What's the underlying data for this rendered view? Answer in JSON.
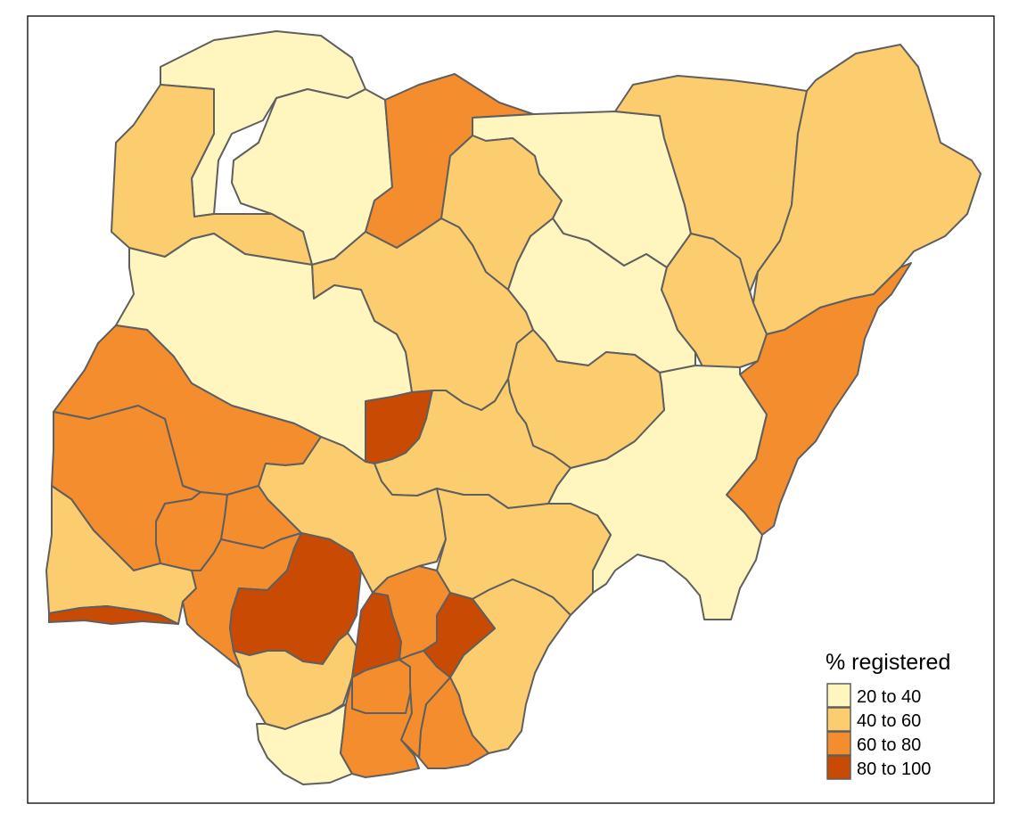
{
  "legend": {
    "title": "% registered",
    "classes": [
      {
        "label": "20 to 40",
        "color": "#FFF5BF"
      },
      {
        "label": "40 to 60",
        "color": "#FCCD6E"
      },
      {
        "label": "60 to 80",
        "color": "#F48D2E"
      },
      {
        "label": "80 to 100",
        "color": "#C94A02"
      }
    ]
  },
  "colors": {
    "border": "#5f5f5f",
    "frame": "#000000",
    "background": "#ffffff"
  },
  "regions": [
    {
      "id": "sokoto",
      "class": 0
    },
    {
      "id": "zamfara",
      "class": 0
    },
    {
      "id": "kebbi",
      "class": 1
    },
    {
      "id": "katsina",
      "class": 2
    },
    {
      "id": "jigawa",
      "class": 0
    },
    {
      "id": "kano",
      "class": 1
    },
    {
      "id": "yobe",
      "class": 1
    },
    {
      "id": "borno",
      "class": 1
    },
    {
      "id": "kaduna",
      "class": 1
    },
    {
      "id": "bauchi",
      "class": 0
    },
    {
      "id": "gombe",
      "class": 1
    },
    {
      "id": "adamawa",
      "class": 2
    },
    {
      "id": "niger",
      "class": 0
    },
    {
      "id": "fct-abuja",
      "class": 3
    },
    {
      "id": "plateau",
      "class": 1
    },
    {
      "id": "nasarawa",
      "class": 1
    },
    {
      "id": "taraba",
      "class": 0
    },
    {
      "id": "kwara",
      "class": 2
    },
    {
      "id": "oyo",
      "class": 2
    },
    {
      "id": "kogi",
      "class": 1
    },
    {
      "id": "benue",
      "class": 1
    },
    {
      "id": "ogun",
      "class": 1
    },
    {
      "id": "lagos",
      "class": 3
    },
    {
      "id": "osun",
      "class": 2
    },
    {
      "id": "ekiti",
      "class": 2
    },
    {
      "id": "ondo",
      "class": 2
    },
    {
      "id": "edo",
      "class": 3
    },
    {
      "id": "delta",
      "class": 1
    },
    {
      "id": "bayelsa",
      "class": 0
    },
    {
      "id": "rivers",
      "class": 2
    },
    {
      "id": "anambra",
      "class": 3
    },
    {
      "id": "enugu",
      "class": 2
    },
    {
      "id": "ebonyi",
      "class": 3
    },
    {
      "id": "cross-river",
      "class": 1
    },
    {
      "id": "imo",
      "class": 2
    },
    {
      "id": "abia",
      "class": 2
    },
    {
      "id": "akwa-ibom",
      "class": 2
    }
  ]
}
